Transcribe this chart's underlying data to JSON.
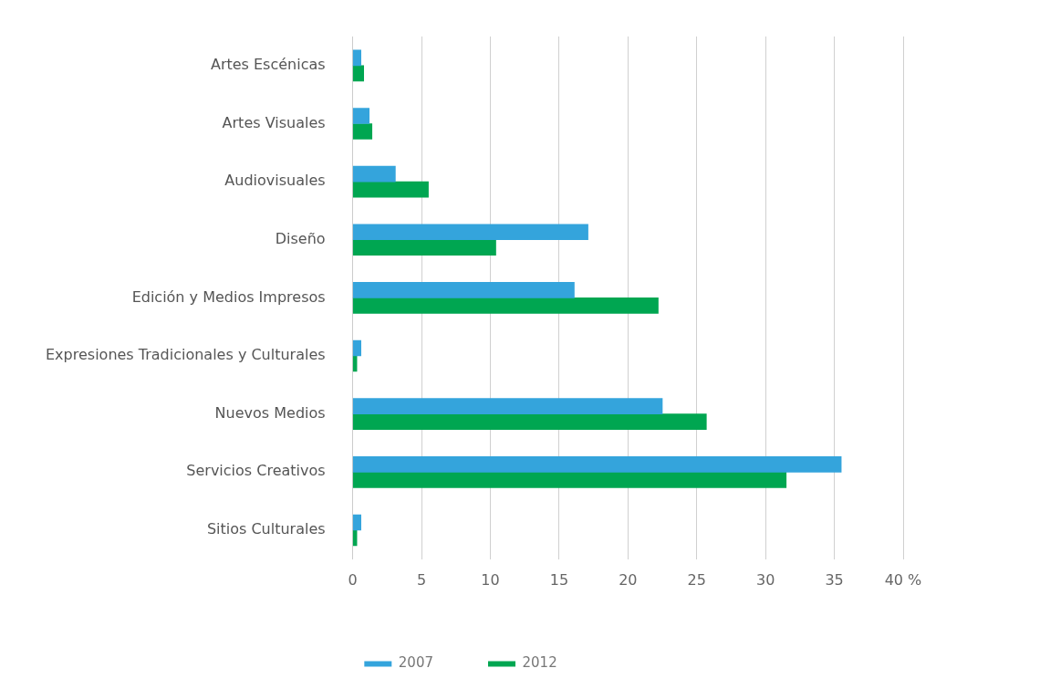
{
  "chart_data": {
    "type": "bar",
    "orientation": "horizontal",
    "categories": [
      "Artes Escénicas",
      "Artes Visuales",
      "Audiovisuales",
      "Diseño",
      "Edición y Medios Impresos",
      "Expresiones Tradicionales y Culturales",
      "Nuevos Medios",
      "Servicios Creativos",
      "Sitios Culturales"
    ],
    "series": [
      {
        "name": "2007",
        "color": "#34a4dc",
        "values": [
          0.6,
          1.2,
          3.1,
          17.1,
          16.1,
          0.6,
          22.5,
          35.5,
          0.6
        ]
      },
      {
        "name": "2012",
        "color": "#00a651",
        "values": [
          0.8,
          1.4,
          5.5,
          10.4,
          22.2,
          0.3,
          25.7,
          31.5,
          0.3
        ]
      }
    ],
    "xlim": [
      0,
      40
    ],
    "xticks": [
      0,
      5,
      10,
      15,
      20,
      25,
      30,
      35,
      {
        "value": 40,
        "label": "40 %"
      }
    ],
    "grid": "x",
    "legend": "bottom"
  }
}
